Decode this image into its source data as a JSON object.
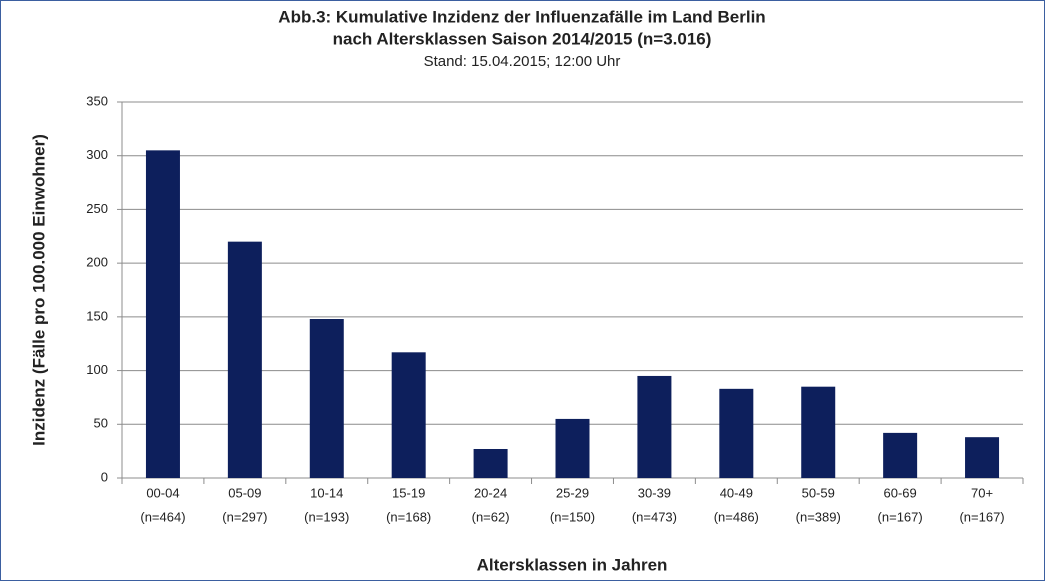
{
  "chart_data": {
    "type": "bar",
    "title": [
      "Abb.3:  Kumulative Inzidenz der Influenzafälle im Land Berlin",
      "nach Altersklassen  Saison 2014/2015  (n=3.016)"
    ],
    "subtitle": "Stand: 15.04.2015; 12:00 Uhr",
    "x_label": "Altersklassen  in Jahren",
    "y_label": "Inzidenz (Fälle pro 100.000 Einwohner)",
    "categories": [
      "00-04",
      "05-09",
      "10-14",
      "15-19",
      "20-24",
      "25-29",
      "30-39",
      "40-49",
      "50-59",
      "60-69",
      "70+"
    ],
    "category_counts": [
      "(n=464)",
      "(n=297)",
      "(n=193)",
      "(n=168)",
      "(n=62)",
      "(n=150)",
      "(n=473)",
      "(n=486)",
      "(n=389)",
      "(n=167)",
      "(n=167)"
    ],
    "values": [
      305,
      220,
      148,
      117,
      27,
      55,
      95,
      83,
      85,
      42,
      38
    ],
    "color": "#0d1f5c",
    "ylim": [
      0,
      350
    ],
    "yticks": [
      0,
      50,
      100,
      150,
      200,
      250,
      300,
      350
    ],
    "grid": true
  }
}
